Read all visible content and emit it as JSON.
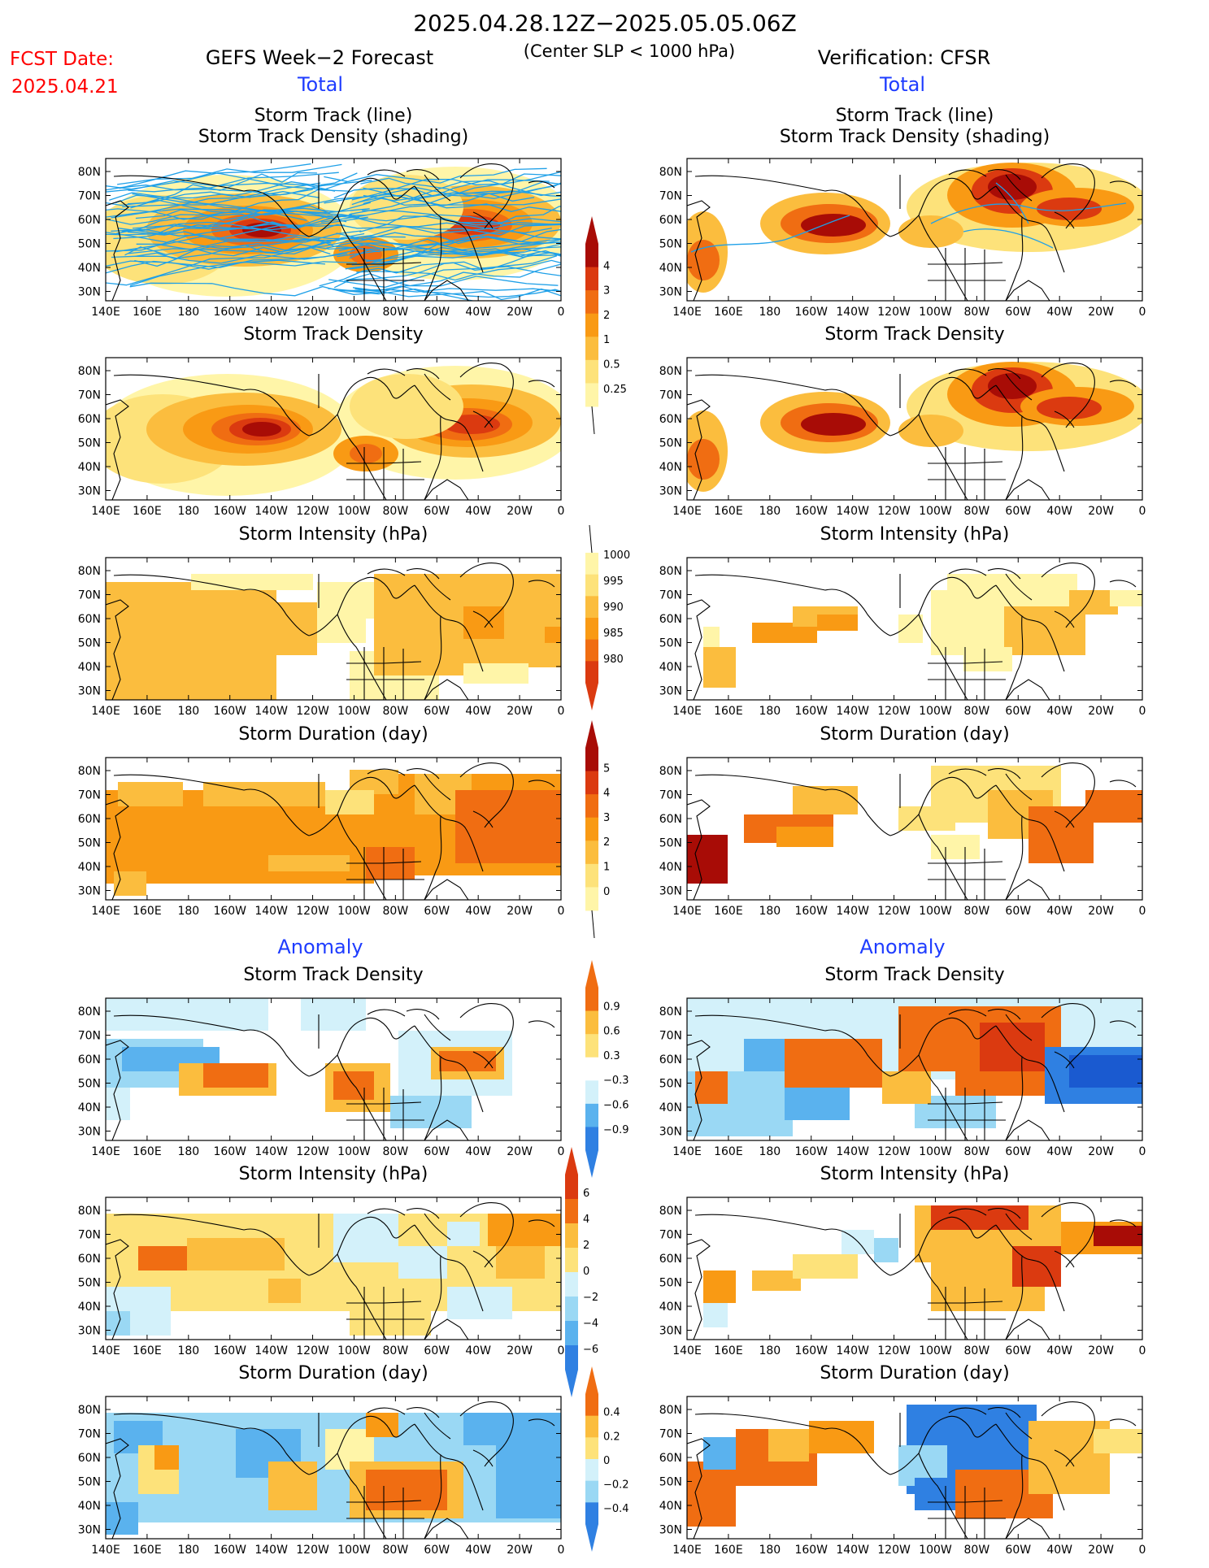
{
  "header": {
    "period": "2025.04.28.12Z−2025.05.05.06Z",
    "fcst_label": "FCST Date:",
    "fcst_date": "2025.04.21",
    "left_title": "GEFS Week−2 Forecast",
    "subtitle": "(Center SLP < 1000 hPa)",
    "right_title": "Verification: CFSR",
    "total_label": "Total",
    "anomaly_label": "Anomaly"
  },
  "panel_titles": {
    "track_line": "Storm Track (line)",
    "track_shading": "Storm Track Density (shading)",
    "density": "Storm Track Density",
    "intensity": "Storm Intensity (hPa)",
    "duration": "Storm Duration (day)"
  },
  "axes": {
    "lat_labels": [
      "80N",
      "70N",
      "60N",
      "50N",
      "40N",
      "30N"
    ],
    "lon_labels": [
      "140E",
      "160E",
      "180",
      "160W",
      "140W",
      "120W",
      "100W",
      "80W",
      "60W",
      "40W",
      "20W",
      "0"
    ]
  },
  "colorbars": {
    "density_total": [
      "4",
      "3",
      "2",
      "1",
      "0.5",
      "0.25"
    ],
    "intensity_total": [
      "1000",
      "995",
      "990",
      "985",
      "980"
    ],
    "duration_total": [
      "5",
      "4",
      "3",
      "2",
      "1",
      "0"
    ],
    "density_anom": [
      "0.9",
      "0.6",
      "0.3",
      "−0.3",
      "−0.6",
      "−0.9"
    ],
    "intensity_anom": [
      "6",
      "4",
      "2",
      "0",
      "−2",
      "−4",
      "−6"
    ],
    "duration_anom": [
      "0.4",
      "0.2",
      "0",
      "−0.2",
      "−0.4"
    ]
  },
  "colors": {
    "title_red": "#ff0000",
    "title_blue": "#1e3cff",
    "track_line": "#1fa0e8",
    "warm": [
      "#fff5a8",
      "#fde27a",
      "#fbbd3e",
      "#f99a14",
      "#f06d12",
      "#db3a10",
      "#a80c06"
    ],
    "cool": [
      "#d3f1fa",
      "#9ad8f4",
      "#5ab2ee",
      "#2f80e2",
      "#1a5ad0"
    ]
  }
}
